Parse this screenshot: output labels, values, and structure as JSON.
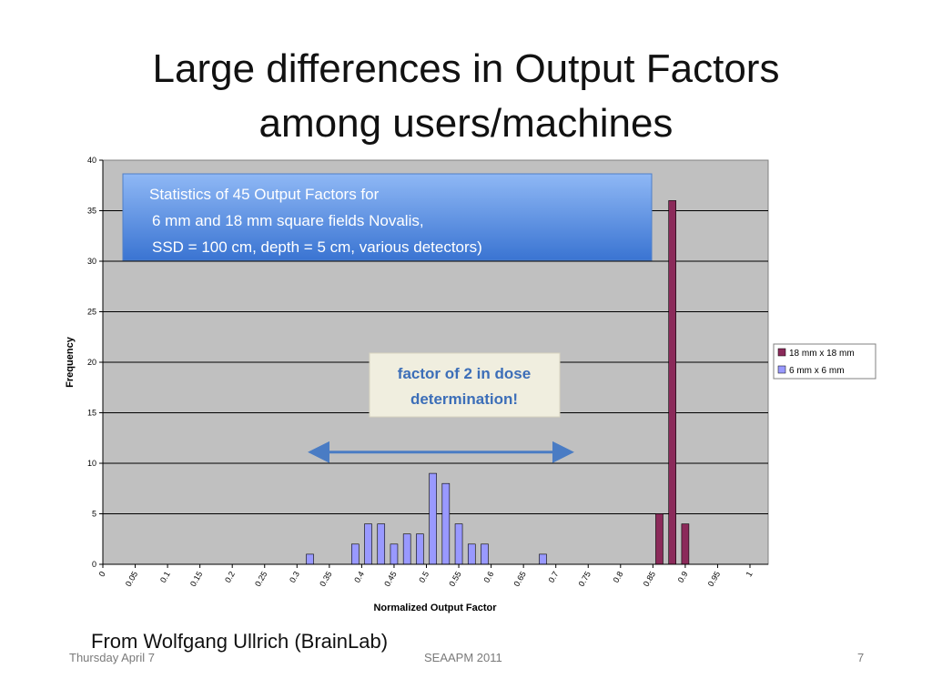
{
  "slide": {
    "title_line1": "Large differences in Output Factors",
    "title_line2": "among users/machines",
    "credit": "From Wolfgang Ullrich (BrainLab)",
    "date": "Thursday April 7",
    "conference": "SEAAPM 2011",
    "page": "7"
  },
  "chart_data": {
    "type": "bar",
    "xlabel": "Normalized Output Factor",
    "ylabel": "Frequency",
    "ylim": [
      0,
      40
    ],
    "yticks": [
      0,
      5,
      10,
      15,
      20,
      25,
      30,
      35,
      40
    ],
    "grid": true,
    "legend_position": "right",
    "categories": [
      "0",
      "0.05",
      "0.1",
      "0.15",
      "0.2",
      "0.25",
      "0.3",
      "0.35",
      "0.4",
      "0.45",
      "0.5",
      "0.55",
      "0.6",
      "0.65",
      "0.7",
      "0.75",
      "0.8",
      "0.85",
      "0.9",
      "0.95",
      "1"
    ],
    "series": [
      {
        "name": "18 mm x 18 mm",
        "color": "#8b2a5a",
        "points": [
          [
            0.86,
            5
          ],
          [
            0.88,
            36
          ],
          [
            0.9,
            4
          ]
        ]
      },
      {
        "name": "6 mm x 6 mm",
        "color": "#9999ff",
        "points": [
          [
            0.32,
            1
          ],
          [
            0.39,
            2
          ],
          [
            0.41,
            4
          ],
          [
            0.43,
            4
          ],
          [
            0.45,
            2
          ],
          [
            0.47,
            3
          ],
          [
            0.49,
            3
          ],
          [
            0.51,
            9
          ],
          [
            0.53,
            8
          ],
          [
            0.55,
            4
          ],
          [
            0.57,
            2
          ],
          [
            0.59,
            2
          ],
          [
            0.68,
            1
          ]
        ]
      }
    ],
    "annotations": {
      "stats_box": [
        "Statistics of 45 Output Factors for",
        "6 mm and 18 mm square fields Novalis,",
        "SSD = 100 cm, depth = 5 cm, various detectors)"
      ],
      "factor_box": [
        "factor of 2 in dose",
        "determination!"
      ],
      "arrow": {
        "from": 0.325,
        "to": 0.72,
        "y": 11.1
      }
    }
  }
}
